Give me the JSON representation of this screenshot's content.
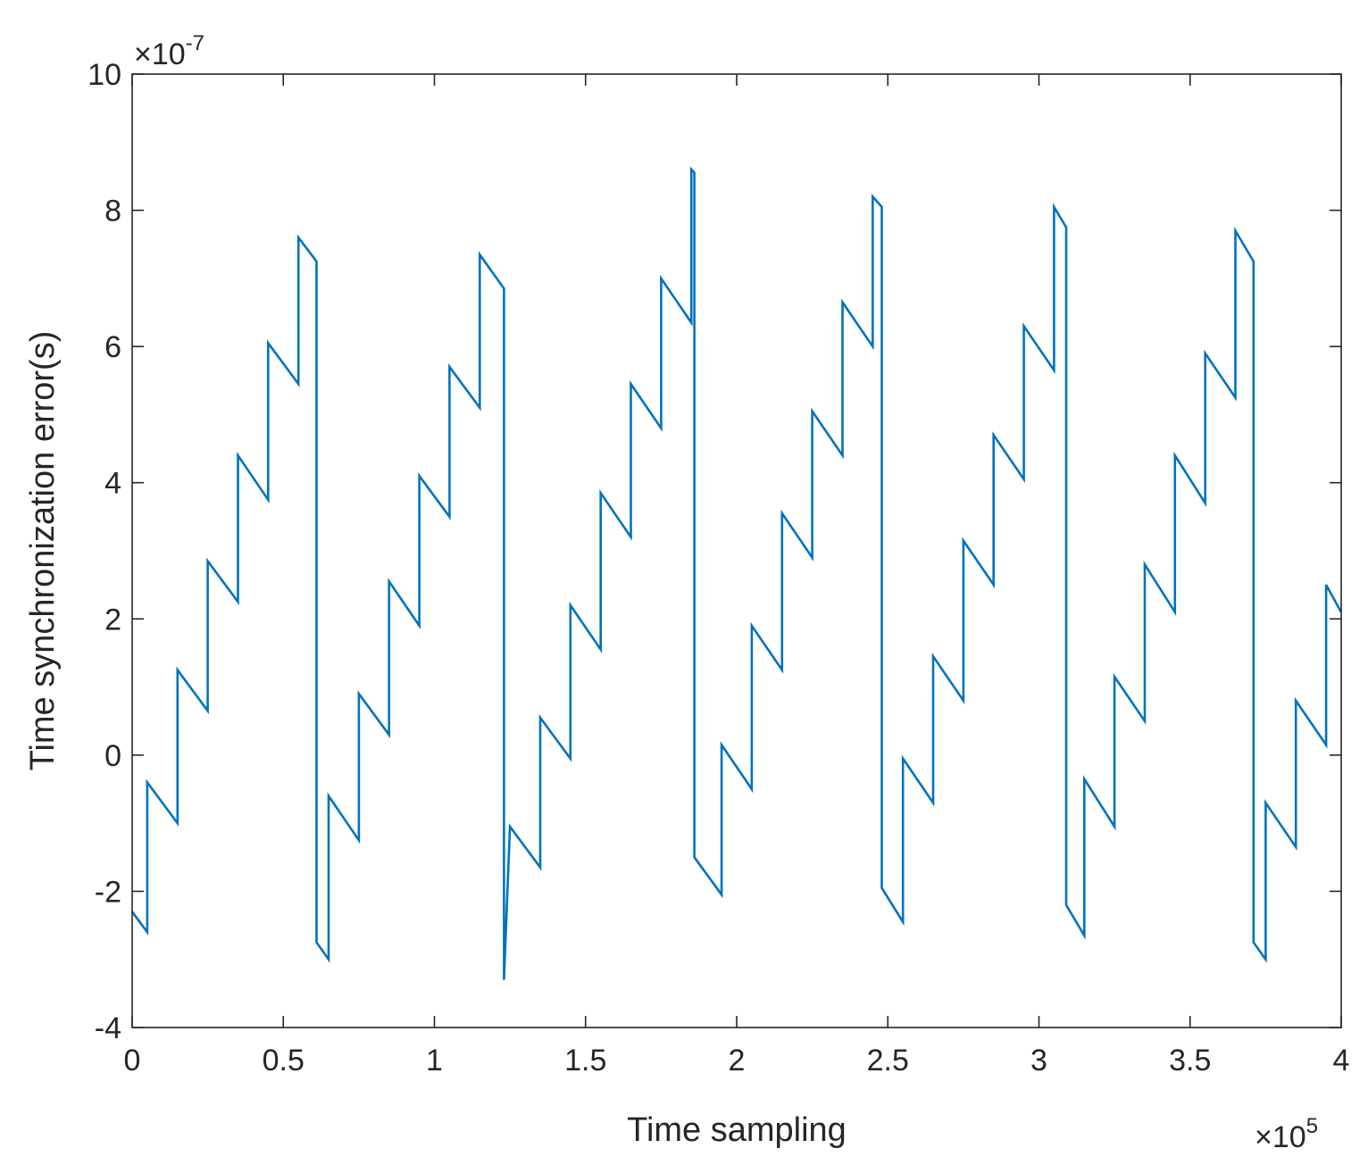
{
  "chart_data": {
    "type": "line",
    "xlabel": "Time sampling",
    "ylabel": "Time synchronization error(s)",
    "x_multiplier": "×10",
    "x_exponent": "5",
    "y_multiplier": "×10",
    "y_exponent": "-7",
    "xlim": [
      0,
      4
    ],
    "ylim": [
      -4,
      10
    ],
    "x_ticks": [
      "0",
      "0.5",
      "1",
      "1.5",
      "2",
      "2.5",
      "3",
      "3.5",
      "4"
    ],
    "y_ticks": [
      "-4",
      "-2",
      "0",
      "2",
      "4",
      "6",
      "8",
      "10"
    ],
    "grid": false,
    "series_color": "#0072BD",
    "series": [
      {
        "x": [
          0,
          0.05,
          0.05,
          0.15,
          0.15,
          0.25,
          0.25,
          0.35,
          0.35,
          0.45,
          0.45,
          0.55,
          0.55,
          0.61,
          0.61,
          0.65,
          0.65,
          0.75,
          0.75,
          0.85,
          0.85,
          0.95,
          0.95,
          1.05,
          1.05,
          1.15,
          1.15,
          1.23,
          1.23,
          1.25,
          1.25,
          1.35,
          1.35,
          1.45,
          1.45,
          1.55,
          1.55,
          1.65,
          1.65,
          1.75,
          1.75,
          1.85,
          1.85,
          1.86,
          1.86,
          1.95,
          1.95,
          2.05,
          2.05,
          2.15,
          2.15,
          2.25,
          2.25,
          2.35,
          2.35,
          2.45,
          2.45,
          2.48,
          2.48,
          2.55,
          2.55,
          2.65,
          2.65,
          2.75,
          2.75,
          2.85,
          2.85,
          2.95,
          2.95,
          3.05,
          3.05,
          3.09,
          3.09,
          3.15,
          3.15,
          3.25,
          3.25,
          3.35,
          3.35,
          3.45,
          3.45,
          3.55,
          3.55,
          3.65,
          3.65,
          3.71,
          3.71,
          3.75,
          3.75,
          3.85,
          3.85,
          3.95,
          3.95,
          4.0
        ],
        "y": [
          -2.3,
          -2.6,
          -0.4,
          -1.0,
          1.25,
          0.65,
          2.85,
          2.25,
          4.4,
          3.75,
          6.05,
          5.45,
          7.6,
          7.25,
          -2.75,
          -3.0,
          -0.6,
          -1.25,
          0.9,
          0.3,
          2.55,
          1.9,
          4.1,
          3.5,
          5.7,
          5.1,
          7.35,
          6.85,
          -3.3,
          -1.05,
          -1.05,
          -1.65,
          0.55,
          -0.05,
          2.2,
          1.55,
          3.85,
          3.2,
          5.45,
          4.8,
          7.0,
          6.35,
          8.6,
          8.55,
          -1.5,
          -2.05,
          0.15,
          -0.5,
          1.9,
          1.25,
          3.55,
          2.9,
          5.05,
          4.4,
          6.65,
          6.0,
          8.2,
          8.05,
          -1.95,
          -2.45,
          -0.05,
          -0.7,
          1.45,
          0.8,
          3.15,
          2.5,
          4.7,
          4.05,
          6.3,
          5.65,
          8.05,
          7.75,
          -2.2,
          -2.65,
          -0.35,
          -1.05,
          1.15,
          0.5,
          2.8,
          2.1,
          4.4,
          3.7,
          5.9,
          5.25,
          7.7,
          7.25,
          -2.75,
          -3.0,
          -0.7,
          -1.35,
          0.8,
          0.15,
          2.5,
          2.1
        ]
      }
    ]
  }
}
